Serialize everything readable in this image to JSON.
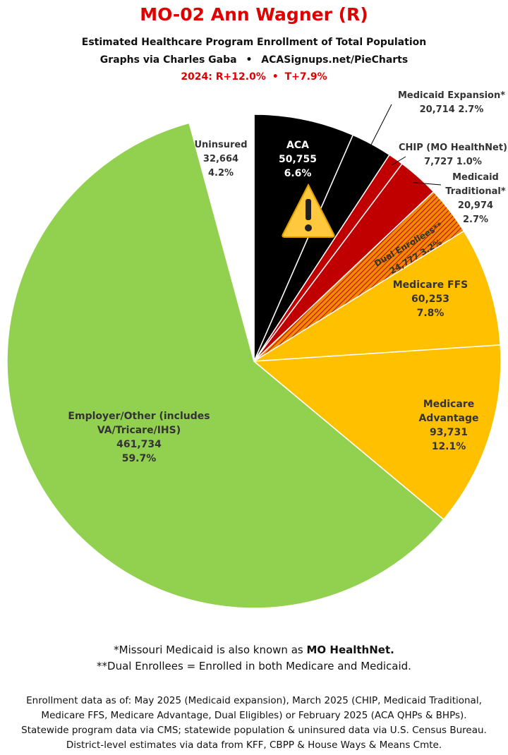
{
  "chart_data": {
    "type": "pie",
    "title": "MO-02 Ann Wagner (R)",
    "subtitle": "Estimated Healthcare Program Enrollment of Total Population",
    "credit_name": "Graphs via Charles Gaba",
    "credit_site": "ACASignups.net/PieCharts",
    "election_year": "2024:",
    "election_r": "R+12.0%",
    "election_t": "T+7.9%",
    "categories": [
      "ACA",
      "Medicaid Expansion*",
      "CHIP (MO HealthNet)",
      "Medicaid Traditional*",
      "Dual Enrollees**",
      "Medicare FFS",
      "Medicare Advantage",
      "Employer/Other (includes VA/Tricare/IHS)",
      "Uninsured"
    ],
    "values": [
      50755,
      20714,
      7727,
      20974,
      24777,
      60253,
      93731,
      461734,
      32664
    ],
    "value_labels": [
      "50,755",
      "20,714",
      "7,727",
      "20,974",
      "24,777",
      "60,253",
      "93,731",
      "461,734",
      "32,664"
    ],
    "percents": [
      6.6,
      2.7,
      1.0,
      2.7,
      3.2,
      7.8,
      12.1,
      59.7,
      4.2
    ],
    "percent_labels": [
      "6.6%",
      "2.7%",
      "1.0%",
      "2.7%",
      "3.2%",
      "7.8%",
      "12.1%",
      "59.7%",
      "4.2%"
    ],
    "colors": [
      "#000000",
      "#000000",
      "#c00000",
      "#c00000",
      "#f08a00",
      "#ffc000",
      "#ffc000",
      "#92d050",
      "#ffffff"
    ],
    "footnote_1": "*Missouri Medicaid is also known as",
    "footnote_1_emphasis": "MO HealthNet.",
    "footnote_2": "**Dual Enrollees = Enrolled in both Medicare and Medicaid.",
    "sources": [
      "Enrollment data as of: May 2025 (Medicaid expansion), March 2025 (CHIP, Medicaid Traditional,",
      "Medicare FFS, Medicare Advantage, Dual Eligibles) or February 2025 (ACA QHPs & BHPs).",
      "Statewide program data via CMS; statewide population & uninsured data via U.S. Census Bureau.",
      "District-level estimates via data from KFF, CBPP & House Ways & Means Cmte."
    ]
  }
}
